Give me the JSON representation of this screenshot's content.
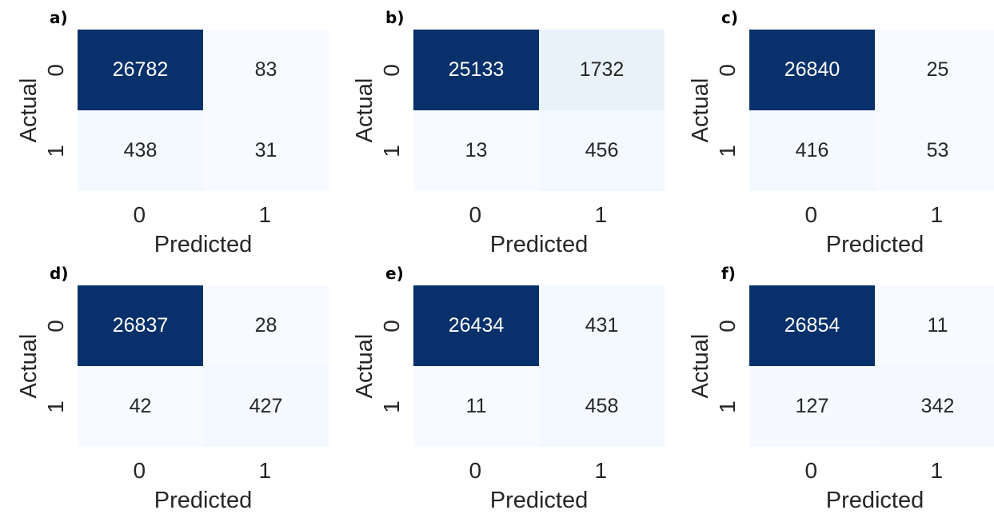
{
  "chart_data": [
    {
      "type": "heatmap",
      "panel_label": "a)",
      "xlabel": "Predicted",
      "ylabel": "Actual",
      "x_ticks": [
        "0",
        "1"
      ],
      "y_ticks": [
        "0",
        "1"
      ],
      "values": [
        [
          26782,
          83
        ],
        [
          438,
          31
        ]
      ]
    },
    {
      "type": "heatmap",
      "panel_label": "b)",
      "xlabel": "Predicted",
      "ylabel": "Actual",
      "x_ticks": [
        "0",
        "1"
      ],
      "y_ticks": [
        "0",
        "1"
      ],
      "values": [
        [
          25133,
          1732
        ],
        [
          13,
          456
        ]
      ]
    },
    {
      "type": "heatmap",
      "panel_label": "c)",
      "xlabel": "Predicted",
      "ylabel": "Actual",
      "x_ticks": [
        "0",
        "1"
      ],
      "y_ticks": [
        "0",
        "1"
      ],
      "values": [
        [
          26840,
          25
        ],
        [
          416,
          53
        ]
      ]
    },
    {
      "type": "heatmap",
      "panel_label": "d)",
      "xlabel": "Predicted",
      "ylabel": "Actual",
      "x_ticks": [
        "0",
        "1"
      ],
      "y_ticks": [
        "0",
        "1"
      ],
      "values": [
        [
          26837,
          28
        ],
        [
          42,
          427
        ]
      ]
    },
    {
      "type": "heatmap",
      "panel_label": "e)",
      "xlabel": "Predicted",
      "ylabel": "Actual",
      "x_ticks": [
        "0",
        "1"
      ],
      "y_ticks": [
        "0",
        "1"
      ],
      "values": [
        [
          26434,
          431
        ],
        [
          11,
          458
        ]
      ]
    },
    {
      "type": "heatmap",
      "panel_label": "f)",
      "xlabel": "Predicted",
      "ylabel": "Actual",
      "x_ticks": [
        "0",
        "1"
      ],
      "y_ticks": [
        "0",
        "1"
      ],
      "values": [
        [
          26854,
          11
        ],
        [
          127,
          342
        ]
      ]
    }
  ],
  "colormap": {
    "name": "Blues",
    "low": "#f7fbff",
    "high": "#08306b"
  }
}
